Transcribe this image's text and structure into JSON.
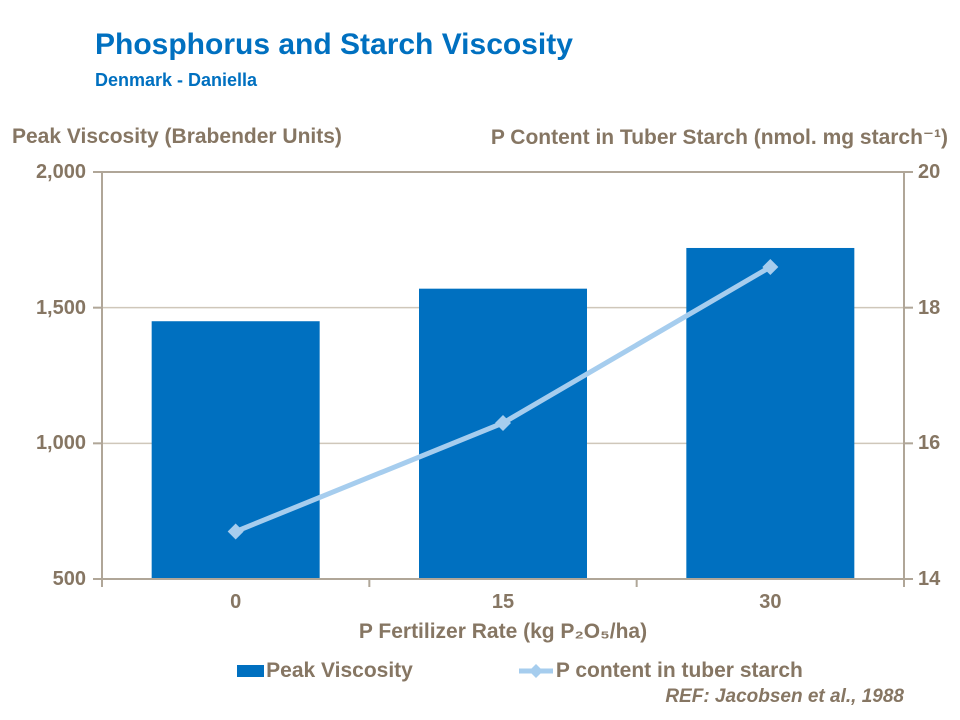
{
  "header": {
    "title": "Phosphorus and Starch Viscosity",
    "subtitle": "Denmark - Daniella",
    "reference": "REF: Jacobsen et al., 1988"
  },
  "legend": {
    "items": [
      {
        "label": "Peak Viscosity",
        "swatch": "bar-square",
        "color": "#0070C0"
      },
      {
        "label": "P content in tuber starch",
        "swatch": "line-diamond",
        "color": "#A6CDEE"
      }
    ]
  },
  "chart_data": {
    "type": "bar",
    "categories": [
      "0",
      "15",
      "30"
    ],
    "series": [
      {
        "name": "Peak Viscosity",
        "kind": "bar",
        "axis": "left",
        "color": "#0070C0",
        "values": [
          1450,
          1570,
          1720
        ]
      },
      {
        "name": "P content in tuber starch",
        "kind": "line",
        "axis": "right",
        "color": "#A6CDEE",
        "marker": "diamond",
        "values": [
          14.7,
          16.3,
          18.6
        ]
      }
    ],
    "axes": {
      "left": {
        "title": "Peak Viscosity (Brabender Units)",
        "min": 500,
        "max": 2000,
        "tick_values": [
          2000,
          1500,
          1000,
          500
        ],
        "tick_labels": [
          "2,000",
          "1,500",
          "1,000",
          "500"
        ]
      },
      "right": {
        "title": "P Content in Tuber Starch (nmol. mg starch⁻¹)",
        "min": 14,
        "max": 20,
        "tick_values": [
          20,
          18,
          16,
          14
        ],
        "tick_labels": [
          "20",
          "18",
          "16",
          "14"
        ]
      },
      "x": {
        "title": "P Fertilizer Rate (kg P₂O₅/ha)",
        "tick_labels": [
          "0",
          "15",
          "30"
        ]
      }
    },
    "grid": true,
    "legend_position": "bottom"
  },
  "colors": {
    "title": "#0070C0",
    "bar": "#0070C0",
    "line": "#A6CDEE",
    "axis_text": "#867663",
    "axis_line": "#B0A698",
    "gridline": "#CFC7BA",
    "background": "#FFFFFF"
  }
}
